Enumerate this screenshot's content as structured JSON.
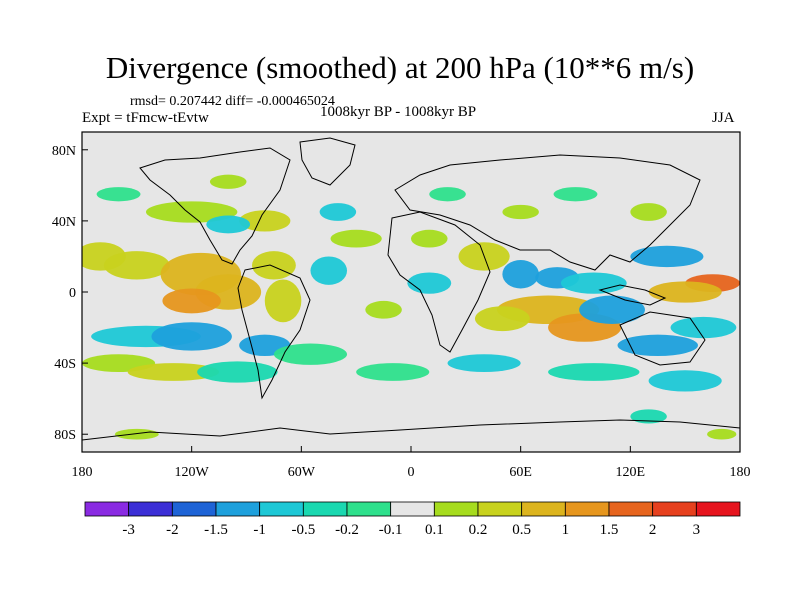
{
  "title": "Divergence (smoothed) at 200 hPa (10**6 m/s)",
  "stats": "rmsd= 0.207442 diff= -0.000465024",
  "experiment": "Expt = tFmcw-tEvtw",
  "period": "1008kyr BP - 1008kyr BP",
  "season": "JJA",
  "axes": {
    "y_ticks": [
      {
        "label": "80N",
        "lat": 80
      },
      {
        "label": "40N",
        "lat": 40
      },
      {
        "label": "0",
        "lat": 0
      },
      {
        "label": "40S",
        "lat": -40
      },
      {
        "label": "80S",
        "lat": -80
      }
    ],
    "x_ticks": [
      {
        "label": "180",
        "lon": -180
      },
      {
        "label": "120W",
        "lon": -120
      },
      {
        "label": "60W",
        "lon": -60
      },
      {
        "label": "0",
        "lon": 0
      },
      {
        "label": "60E",
        "lon": 60
      },
      {
        "label": "120E",
        "lon": 120
      },
      {
        "label": "180",
        "lon": 180
      }
    ]
  },
  "colorbar": {
    "colors": [
      "#8a2be2",
      "#3c2fd6",
      "#1e63d6",
      "#1ea0dc",
      "#1ec8d6",
      "#1ad8b0",
      "#2ee08c",
      "#e6e6e6",
      "#a6dc1e",
      "#c8d21e",
      "#dcb41e",
      "#e6961e",
      "#e6641e",
      "#e6401e",
      "#e6141e"
    ],
    "labels": [
      "-3",
      "-2",
      "-1.5",
      "-1",
      "-0.5",
      "-0.2",
      "-0.1",
      "0.1",
      "0.2",
      "0.5",
      "1",
      "1.5",
      "2",
      "3"
    ]
  },
  "field": {
    "blobs": [
      {
        "lon": -170,
        "lat": 20,
        "rx": 14,
        "ry": 8,
        "color": "#c8d21e"
      },
      {
        "lon": -150,
        "lat": 15,
        "rx": 18,
        "ry": 8,
        "color": "#c8d21e"
      },
      {
        "lon": -115,
        "lat": 10,
        "rx": 22,
        "ry": 12,
        "color": "#dcb41e"
      },
      {
        "lon": -100,
        "lat": 0,
        "rx": 18,
        "ry": 10,
        "color": "#dcb41e"
      },
      {
        "lon": -120,
        "lat": -5,
        "rx": 16,
        "ry": 7,
        "color": "#e6961e"
      },
      {
        "lon": -75,
        "lat": 15,
        "rx": 12,
        "ry": 8,
        "color": "#c8d21e"
      },
      {
        "lon": -70,
        "lat": -5,
        "rx": 10,
        "ry": 12,
        "color": "#c8d21e"
      },
      {
        "lon": -145,
        "lat": -25,
        "rx": 30,
        "ry": 6,
        "color": "#1ec8d6"
      },
      {
        "lon": -120,
        "lat": -25,
        "rx": 22,
        "ry": 8,
        "color": "#1ea0dc"
      },
      {
        "lon": -80,
        "lat": -30,
        "rx": 14,
        "ry": 6,
        "color": "#1ea0dc"
      },
      {
        "lon": -160,
        "lat": -40,
        "rx": 20,
        "ry": 5,
        "color": "#a6dc1e"
      },
      {
        "lon": -130,
        "lat": -45,
        "rx": 25,
        "ry": 5,
        "color": "#c8d21e"
      },
      {
        "lon": -95,
        "lat": -45,
        "rx": 22,
        "ry": 6,
        "color": "#1ad8b0"
      },
      {
        "lon": -55,
        "lat": -35,
        "rx": 20,
        "ry": 6,
        "color": "#2ee08c"
      },
      {
        "lon": -45,
        "lat": 12,
        "rx": 10,
        "ry": 8,
        "color": "#1ec8d6"
      },
      {
        "lon": -120,
        "lat": 45,
        "rx": 25,
        "ry": 6,
        "color": "#a6dc1e"
      },
      {
        "lon": -80,
        "lat": 40,
        "rx": 14,
        "ry": 6,
        "color": "#c8d21e"
      },
      {
        "lon": -100,
        "lat": 38,
        "rx": 12,
        "ry": 5,
        "color": "#1ec8d6"
      },
      {
        "lon": -30,
        "lat": 30,
        "rx": 14,
        "ry": 5,
        "color": "#a6dc1e"
      },
      {
        "lon": -40,
        "lat": 45,
        "rx": 10,
        "ry": 5,
        "color": "#1ec8d6"
      },
      {
        "lon": 10,
        "lat": 30,
        "rx": 10,
        "ry": 5,
        "color": "#a6dc1e"
      },
      {
        "lon": 40,
        "lat": 20,
        "rx": 14,
        "ry": 8,
        "color": "#c8d21e"
      },
      {
        "lon": 60,
        "lat": 10,
        "rx": 10,
        "ry": 8,
        "color": "#1ea0dc"
      },
      {
        "lon": 80,
        "lat": 8,
        "rx": 12,
        "ry": 6,
        "color": "#1ea0dc"
      },
      {
        "lon": 100,
        "lat": 5,
        "rx": 18,
        "ry": 6,
        "color": "#1ec8d6"
      },
      {
        "lon": 75,
        "lat": -10,
        "rx": 28,
        "ry": 8,
        "color": "#dcb41e"
      },
      {
        "lon": 95,
        "lat": -20,
        "rx": 20,
        "ry": 8,
        "color": "#e6961e"
      },
      {
        "lon": 50,
        "lat": -15,
        "rx": 15,
        "ry": 7,
        "color": "#c8d21e"
      },
      {
        "lon": 110,
        "lat": -10,
        "rx": 18,
        "ry": 8,
        "color": "#1ea0dc"
      },
      {
        "lon": 140,
        "lat": 20,
        "rx": 20,
        "ry": 6,
        "color": "#1ea0dc"
      },
      {
        "lon": 165,
        "lat": 5,
        "rx": 15,
        "ry": 5,
        "color": "#e6641e"
      },
      {
        "lon": 150,
        "lat": 0,
        "rx": 20,
        "ry": 6,
        "color": "#dcb41e"
      },
      {
        "lon": 160,
        "lat": -20,
        "rx": 18,
        "ry": 6,
        "color": "#1ec8d6"
      },
      {
        "lon": 135,
        "lat": -30,
        "rx": 22,
        "ry": 6,
        "color": "#1ea0dc"
      },
      {
        "lon": 60,
        "lat": 45,
        "rx": 10,
        "ry": 4,
        "color": "#a6dc1e"
      },
      {
        "lon": 20,
        "lat": 55,
        "rx": 10,
        "ry": 4,
        "color": "#2ee08c"
      },
      {
        "lon": 90,
        "lat": 55,
        "rx": 12,
        "ry": 4,
        "color": "#2ee08c"
      },
      {
        "lon": 130,
        "lat": 45,
        "rx": 10,
        "ry": 5,
        "color": "#a6dc1e"
      },
      {
        "lon": 40,
        "lat": -40,
        "rx": 20,
        "ry": 5,
        "color": "#1ec8d6"
      },
      {
        "lon": 100,
        "lat": -45,
        "rx": 25,
        "ry": 5,
        "color": "#1ad8b0"
      },
      {
        "lon": 150,
        "lat": -50,
        "rx": 20,
        "ry": 6,
        "color": "#1ec8d6"
      },
      {
        "lon": -10,
        "lat": -45,
        "rx": 20,
        "ry": 5,
        "color": "#2ee08c"
      },
      {
        "lon": 130,
        "lat": -70,
        "rx": 10,
        "ry": 4,
        "color": "#1ad8b0"
      },
      {
        "lon": -150,
        "lat": -80,
        "rx": 12,
        "ry": 3,
        "color": "#a6dc1e"
      },
      {
        "lon": 170,
        "lat": -80,
        "rx": 8,
        "ry": 3,
        "color": "#a6dc1e"
      },
      {
        "lon": 10,
        "lat": 5,
        "rx": 12,
        "ry": 6,
        "color": "#1ec8d6"
      },
      {
        "lon": -15,
        "lat": -10,
        "rx": 10,
        "ry": 5,
        "color": "#a6dc1e"
      },
      {
        "lon": -160,
        "lat": 55,
        "rx": 12,
        "ry": 4,
        "color": "#2ee08c"
      },
      {
        "lon": -100,
        "lat": 62,
        "rx": 10,
        "ry": 4,
        "color": "#a6dc1e"
      }
    ]
  }
}
